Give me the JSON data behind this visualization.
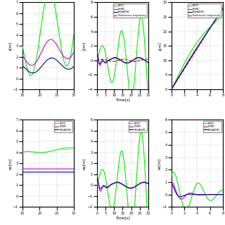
{
  "legend_entries": [
    "FBTC",
    "FSMC",
    "FBsADRC",
    "Reference trajectory"
  ],
  "colors": {
    "FBTC": "#00ee00",
    "FSMC": "#cc00cc",
    "FBsADRC": "#00008b",
    "ref": "#cc0000"
  },
  "lw": 0.8,
  "grid_color": "#cccccc",
  "panels": [
    {
      "ylabel": "x[m]",
      "xlim": [
        15,
        30
      ],
      "ylim": [
        -1,
        7
      ],
      "xticks": [
        15,
        20,
        25,
        30
      ],
      "yticks": [
        -1,
        0,
        1,
        2,
        3,
        4,
        5,
        6,
        7
      ],
      "has_ref": false,
      "has_legend": false,
      "xlabel": ""
    },
    {
      "ylabel": "y[m]",
      "xlim": [
        0,
        30
      ],
      "ylim": [
        -4,
        8
      ],
      "xticks": [
        0,
        5,
        10,
        15,
        20,
        25,
        30
      ],
      "yticks": [
        -4,
        -2,
        0,
        2,
        4,
        6,
        8
      ],
      "has_ref": true,
      "has_legend": true,
      "xlabel": "Time[s]"
    },
    {
      "ylabel": "z[m]",
      "xlim": [
        0,
        8
      ],
      "ylim": [
        0,
        30
      ],
      "xticks": [
        0,
        2,
        4,
        6,
        8
      ],
      "yticks": [
        0,
        5,
        10,
        15,
        20,
        25,
        30
      ],
      "has_ref": true,
      "has_legend": true,
      "xlabel": ""
    },
    {
      "ylabel": "ex[m]",
      "xlim": [
        15,
        30
      ],
      "ylim": [
        -1,
        7
      ],
      "xticks": [
        15,
        20,
        25,
        30
      ],
      "yticks": [
        -1,
        0,
        1,
        2,
        3,
        4,
        5,
        6,
        7
      ],
      "has_ref": false,
      "has_legend": true,
      "xlabel": ""
    },
    {
      "ylabel": "ey[m]",
      "xlim": [
        0,
        30
      ],
      "ylim": [
        -2,
        6
      ],
      "xticks": [
        0,
        5,
        10,
        15,
        20,
        25,
        30
      ],
      "yticks": [
        -2,
        -1,
        0,
        1,
        2,
        3,
        4,
        5,
        6
      ],
      "has_ref": false,
      "has_legend": true,
      "xlabel": "Time[s]"
    },
    {
      "ylabel": "ez[m]",
      "xlim": [
        0,
        8
      ],
      "ylim": [
        -1,
        6
      ],
      "xticks": [
        0,
        2,
        4,
        6,
        8
      ],
      "yticks": [
        -1,
        0,
        1,
        2,
        3,
        4,
        5,
        6
      ],
      "has_ref": false,
      "has_legend": true,
      "xlabel": ""
    }
  ]
}
